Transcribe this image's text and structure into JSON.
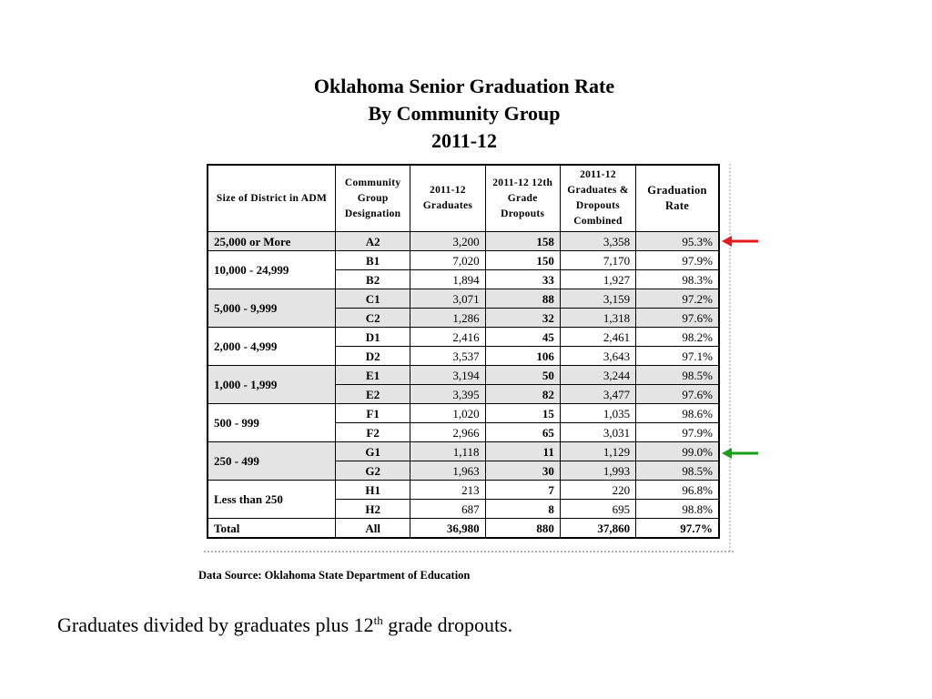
{
  "title": {
    "line1": "Oklahoma Senior Graduation Rate",
    "line2": "By Community Group",
    "line3": "2011-12"
  },
  "table": {
    "headers": {
      "size": "Size of District in ADM",
      "community": "Community Group Designation",
      "graduates": "2011-12 Graduates",
      "dropouts": "2011-12 12th Grade Dropouts",
      "combined": "2011-12 Graduates & Dropouts Combined",
      "rate": "Graduation Rate"
    },
    "groups": [
      {
        "size": "25,000 or More",
        "shaded": true,
        "rows": [
          {
            "code": "A2",
            "graduates": "3,200",
            "dropouts": "158",
            "combined": "3,358",
            "rate": "95.3%"
          }
        ]
      },
      {
        "size": "10,000 - 24,999",
        "shaded": false,
        "rows": [
          {
            "code": "B1",
            "graduates": "7,020",
            "dropouts": "150",
            "combined": "7,170",
            "rate": "97.9%"
          },
          {
            "code": "B2",
            "graduates": "1,894",
            "dropouts": "33",
            "combined": "1,927",
            "rate": "98.3%"
          }
        ]
      },
      {
        "size": "5,000 - 9,999",
        "shaded": true,
        "rows": [
          {
            "code": "C1",
            "graduates": "3,071",
            "dropouts": "88",
            "combined": "3,159",
            "rate": "97.2%"
          },
          {
            "code": "C2",
            "graduates": "1,286",
            "dropouts": "32",
            "combined": "1,318",
            "rate": "97.6%"
          }
        ]
      },
      {
        "size": "2,000 - 4,999",
        "shaded": false,
        "rows": [
          {
            "code": "D1",
            "graduates": "2,416",
            "dropouts": "45",
            "combined": "2,461",
            "rate": "98.2%"
          },
          {
            "code": "D2",
            "graduates": "3,537",
            "dropouts": "106",
            "combined": "3,643",
            "rate": "97.1%"
          }
        ]
      },
      {
        "size": "1,000 - 1,999",
        "shaded": true,
        "rows": [
          {
            "code": "E1",
            "graduates": "3,194",
            "dropouts": "50",
            "combined": "3,244",
            "rate": "98.5%"
          },
          {
            "code": "E2",
            "graduates": "3,395",
            "dropouts": "82",
            "combined": "3,477",
            "rate": "97.6%"
          }
        ]
      },
      {
        "size": "500 - 999",
        "shaded": false,
        "rows": [
          {
            "code": "F1",
            "graduates": "1,020",
            "dropouts": "15",
            "combined": "1,035",
            "rate": "98.6%"
          },
          {
            "code": "F2",
            "graduates": "2,966",
            "dropouts": "65",
            "combined": "3,031",
            "rate": "97.9%"
          }
        ]
      },
      {
        "size": "250 - 499",
        "shaded": true,
        "rows": [
          {
            "code": "G1",
            "graduates": "1,118",
            "dropouts": "11",
            "combined": "1,129",
            "rate": "99.0%"
          },
          {
            "code": "G2",
            "graduates": "1,963",
            "dropouts": "30",
            "combined": "1,993",
            "rate": "98.5%"
          }
        ]
      },
      {
        "size": "Less than 250",
        "shaded": false,
        "rows": [
          {
            "code": "H1",
            "graduates": "213",
            "dropouts": "7",
            "combined": "220",
            "rate": "96.8%"
          },
          {
            "code": "H2",
            "graduates": "687",
            "dropouts": "8",
            "combined": "695",
            "rate": "98.8%"
          }
        ]
      }
    ],
    "total": {
      "size": "Total",
      "code": "All",
      "graduates": "36,980",
      "dropouts": "880",
      "combined": "37,860",
      "rate": "97.7%"
    }
  },
  "source": "Data Source:  Oklahoma State Department of Education",
  "note": {
    "before": "Graduates divided by graduates plus 12",
    "sup": "th",
    "after": " grade dropouts."
  },
  "colors": {
    "shade": "#e4e4e4",
    "arrow_top": "#e41a1c",
    "arrow_bottom": "#1a9e1a"
  }
}
